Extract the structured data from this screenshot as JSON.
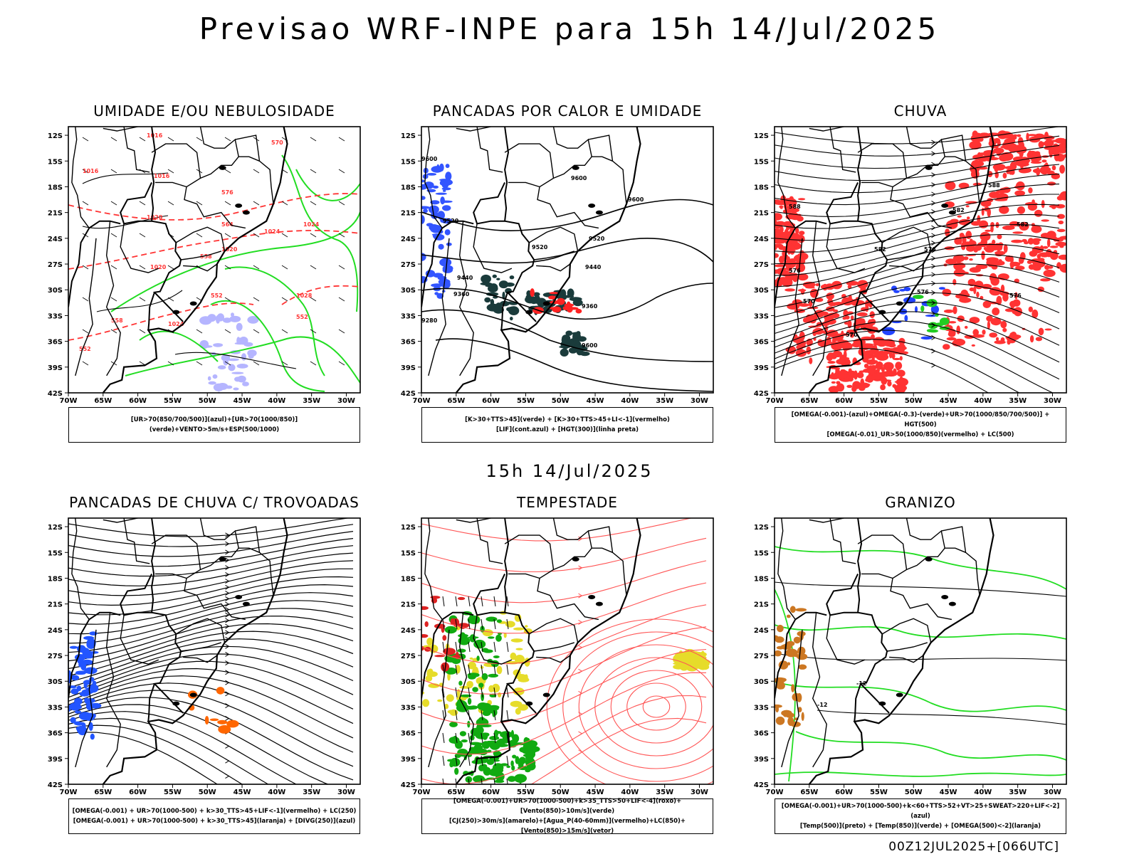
{
  "header": {
    "title": "Previsao WRF-INPE  para 15h 14/Jul/2025"
  },
  "middle_label": "15h 14/Jul/2025",
  "footer_stamp": "00Z12JUL2025+[066UTC]",
  "axes": {
    "lat_labels": [
      "12S",
      "15S",
      "18S",
      "21S",
      "24S",
      "27S",
      "30S",
      "33S",
      "36S",
      "39S",
      "42S"
    ],
    "lon_labels": [
      "70W",
      "65W",
      "60W",
      "55W",
      "50W",
      "45W",
      "40W",
      "35W",
      "30W"
    ]
  },
  "panels": [
    {
      "title": "UMIDADE E/OU NEBULOSIDADE",
      "legend": [
        "[UR>70(850/700/500)](azul)+[UR>70(1000/850)](verde)+VENTO>5m/s+ESP(500/1000)"
      ],
      "contour_labels": [
        "1016",
        "1016",
        "1016",
        "1020",
        "1024",
        "1020",
        "1024",
        "1028",
        "1024",
        "570",
        "576",
        "564",
        "558",
        "552",
        "552",
        "558",
        "552",
        "1020"
      ]
    },
    {
      "title": "PANCADAS POR CALOR E UMIDADE",
      "legend": [
        "[K>30+TTS>45](verde) + [K>30+TTS>45+LI<-1](vermelho)",
        "[LIF](cont.azul) + [HGT(300)](linha preta)"
      ],
      "contour_labels": [
        "9600",
        "9600",
        "9520",
        "9600",
        "9520",
        "9440",
        "9440",
        "9360",
        "9360",
        "9280",
        "9520",
        "9600"
      ]
    },
    {
      "title": "CHUVA",
      "legend": [
        "[OMEGA(-0.001)-(azul)+OMEGA(-0.3)-(verde)+UR>70(1000/850/700/500)] + HGT(500)",
        "[OMEGA(-0.01)_UR>50(1000/850)(vermelho) + LC(500)"
      ],
      "contour_labels": [
        "588",
        "582",
        "582",
        "576",
        "576",
        "576",
        "570",
        "570",
        "576",
        "582",
        "588"
      ]
    },
    {
      "title": "PANCADAS DE CHUVA C/ TROVOADAS",
      "legend": [
        "[OMEGA(-0.001) + UR>70(1000-500) + k>30_TTS>45+LIF<-1](vermelho) + LC(250)",
        "[OMEGA(-0.001) + UR>70(1000-500) + k>30_TTS>45](laranja) + [DIVG(250)](azul)"
      ],
      "contour_labels": []
    },
    {
      "title": "TEMPESTADE",
      "legend": [
        "[OMEGA(-0.001)+UR>70(1000-500)+k>35_TTS>50+LIF<-4](roxo)+[Vento(850)>10m/s](verde)",
        "[CJ(250)>30m/s](amarelo)+[Agua_P(40-60mm)](vermelho)+LC(850)+[Vento(850)>15m/s](vetor)"
      ],
      "contour_labels": []
    },
    {
      "title": "GRANIZO",
      "legend": [
        "[OMEGA(-0.001)+UR>70(1000-500)+k<60+TTS>52+VT>25+SWEAT>220+LIF<-2](azul)",
        "[Temp(500)](preto) + [Temp(850)](verde) + [OMEGA(500)<-2](laranja)"
      ],
      "contour_labels": [
        "-12",
        "-12"
      ]
    }
  ]
}
